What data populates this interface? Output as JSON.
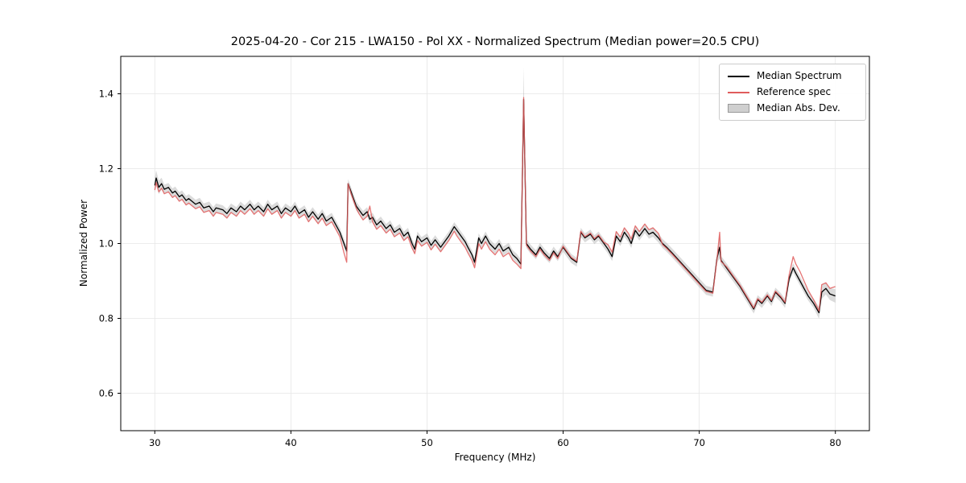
{
  "colors": {
    "median_line": "#000000",
    "reference_line": "#e05c5c",
    "mad_band": "#b0b0b0",
    "grid": "#e6e6e6",
    "axes_border": "#000000",
    "legend_border": "#cccccc"
  },
  "chart_data": {
    "type": "line",
    "title": "2025-04-20 - Cor 215 - LWA150 - Pol XX - Normalized Spectrum (Median power=20.5 CPU)",
    "xlabel": "Frequency (MHz)",
    "ylabel": "Normalized Power",
    "xlim": [
      27.5,
      82.5
    ],
    "ylim": [
      0.5,
      1.5
    ],
    "xticks": [
      30,
      40,
      50,
      60,
      70,
      80
    ],
    "yticks": [
      0.6,
      0.8,
      1.0,
      1.2,
      1.4
    ],
    "grid": true,
    "legend": {
      "position": "top-right",
      "entries": [
        {
          "label": "Median Spectrum",
          "color": "#000000",
          "type": "line"
        },
        {
          "label": "Reference spec",
          "color": "#e05c5c",
          "type": "line"
        },
        {
          "label": "Median Abs. Dev.",
          "color": "#cfcfcf",
          "type": "band"
        }
      ]
    },
    "x": [
      30.0,
      30.1,
      30.3,
      30.5,
      30.7,
      31.0,
      31.3,
      31.5,
      31.8,
      32.0,
      32.3,
      32.5,
      33.0,
      33.3,
      33.6,
      34.0,
      34.3,
      34.5,
      35.0,
      35.3,
      35.6,
      36.0,
      36.3,
      36.6,
      37.0,
      37.3,
      37.6,
      38.0,
      38.3,
      38.6,
      39.0,
      39.3,
      39.6,
      40.0,
      40.3,
      40.6,
      41.0,
      41.3,
      41.6,
      42.0,
      42.3,
      42.6,
      43.0,
      43.3,
      43.6,
      43.9,
      44.1,
      44.2,
      44.4,
      44.6,
      44.8,
      45.0,
      45.3,
      45.6,
      45.8,
      46.0,
      46.3,
      46.6,
      47.0,
      47.3,
      47.6,
      48.0,
      48.3,
      48.6,
      48.9,
      49.1,
      49.3,
      49.6,
      50.0,
      50.3,
      50.6,
      51.0,
      51.3,
      51.6,
      52.0,
      52.2,
      52.5,
      52.8,
      53.0,
      53.3,
      53.5,
      53.8,
      54.0,
      54.3,
      54.6,
      55.0,
      55.3,
      55.6,
      56.0,
      56.3,
      56.6,
      56.9,
      57.1,
      57.3,
      57.6,
      58.0,
      58.3,
      58.6,
      59.0,
      59.3,
      59.6,
      60.0,
      60.3,
      60.6,
      61.0,
      61.3,
      61.6,
      62.0,
      62.3,
      62.6,
      63.0,
      63.3,
      63.6,
      63.9,
      64.2,
      64.5,
      64.8,
      65.0,
      65.3,
      65.6,
      66.0,
      66.3,
      66.6,
      67.0,
      67.3,
      67.6,
      68.0,
      68.5,
      69.0,
      69.5,
      70.0,
      70.5,
      71.0,
      71.3,
      71.5,
      71.6,
      72.0,
      72.5,
      73.0,
      73.5,
      74.0,
      74.3,
      74.6,
      75.0,
      75.3,
      75.6,
      76.0,
      76.3,
      76.6,
      76.9,
      77.1,
      77.4,
      77.7,
      78.0,
      78.4,
      78.8,
      79.0,
      79.3,
      79.6,
      80.0
    ],
    "series": [
      {
        "name": "Median Spectrum",
        "color": "#000000",
        "values": [
          1.155,
          1.175,
          1.15,
          1.16,
          1.145,
          1.15,
          1.135,
          1.14,
          1.125,
          1.13,
          1.115,
          1.12,
          1.105,
          1.11,
          1.095,
          1.1,
          1.085,
          1.095,
          1.09,
          1.08,
          1.095,
          1.085,
          1.1,
          1.09,
          1.105,
          1.09,
          1.1,
          1.085,
          1.105,
          1.09,
          1.1,
          1.08,
          1.095,
          1.085,
          1.1,
          1.08,
          1.09,
          1.07,
          1.085,
          1.065,
          1.08,
          1.06,
          1.07,
          1.05,
          1.03,
          1.0,
          0.98,
          1.16,
          1.14,
          1.12,
          1.1,
          1.09,
          1.075,
          1.085,
          1.065,
          1.07,
          1.05,
          1.06,
          1.04,
          1.05,
          1.03,
          1.04,
          1.02,
          1.03,
          1.0,
          0.985,
          1.02,
          1.005,
          1.015,
          0.995,
          1.01,
          0.99,
          1.005,
          1.02,
          1.045,
          1.035,
          1.02,
          1.005,
          0.99,
          0.97,
          0.95,
          1.015,
          1.0,
          1.02,
          1.0,
          0.985,
          1.0,
          0.98,
          0.99,
          0.97,
          0.96,
          0.945,
          1.385,
          1.0,
          0.985,
          0.97,
          0.99,
          0.975,
          0.96,
          0.98,
          0.965,
          0.99,
          0.975,
          0.96,
          0.95,
          1.03,
          1.015,
          1.025,
          1.01,
          1.02,
          1.0,
          0.985,
          0.965,
          1.02,
          1.005,
          1.03,
          1.015,
          1.0,
          1.035,
          1.02,
          1.04,
          1.025,
          1.03,
          1.015,
          1.0,
          0.99,
          0.975,
          0.955,
          0.935,
          0.915,
          0.895,
          0.875,
          0.87,
          0.96,
          0.99,
          0.955,
          0.935,
          0.91,
          0.885,
          0.855,
          0.825,
          0.85,
          0.84,
          0.86,
          0.845,
          0.87,
          0.855,
          0.84,
          0.905,
          0.935,
          0.92,
          0.9,
          0.88,
          0.86,
          0.84,
          0.815,
          0.87,
          0.88,
          0.865,
          0.86
        ]
      },
      {
        "name": "Reference spec",
        "color": "#e05c5c",
        "values": [
          1.143,
          1.163,
          1.138,
          1.148,
          1.133,
          1.138,
          1.123,
          1.128,
          1.113,
          1.118,
          1.103,
          1.108,
          1.093,
          1.098,
          1.083,
          1.088,
          1.073,
          1.083,
          1.078,
          1.068,
          1.083,
          1.073,
          1.088,
          1.078,
          1.093,
          1.078,
          1.088,
          1.073,
          1.093,
          1.078,
          1.088,
          1.068,
          1.083,
          1.073,
          1.088,
          1.068,
          1.078,
          1.058,
          1.073,
          1.053,
          1.068,
          1.048,
          1.058,
          1.038,
          1.018,
          0.975,
          0.95,
          1.16,
          1.135,
          1.115,
          1.095,
          1.08,
          1.063,
          1.073,
          1.1,
          1.058,
          1.038,
          1.048,
          1.028,
          1.038,
          1.018,
          1.028,
          1.008,
          1.018,
          0.988,
          0.973,
          1.008,
          0.993,
          1.003,
          0.983,
          0.998,
          0.978,
          0.993,
          1.008,
          1.033,
          1.02,
          1.005,
          0.99,
          0.975,
          0.955,
          0.935,
          1.0,
          0.985,
          1.005,
          0.985,
          0.97,
          0.985,
          0.965,
          0.975,
          0.955,
          0.945,
          0.933,
          1.39,
          0.995,
          0.98,
          0.965,
          0.985,
          0.97,
          0.955,
          0.975,
          0.96,
          0.993,
          0.978,
          0.963,
          0.953,
          1.033,
          1.018,
          1.028,
          1.013,
          1.023,
          1.003,
          0.997,
          0.977,
          1.032,
          1.017,
          1.042,
          1.027,
          1.012,
          1.047,
          1.032,
          1.052,
          1.037,
          1.042,
          1.027,
          0.997,
          0.987,
          0.972,
          0.952,
          0.932,
          0.912,
          0.892,
          0.872,
          0.867,
          0.957,
          1.03,
          0.952,
          0.938,
          0.913,
          0.888,
          0.858,
          0.828,
          0.853,
          0.843,
          0.863,
          0.848,
          0.873,
          0.858,
          0.843,
          0.915,
          0.965,
          0.945,
          0.925,
          0.9,
          0.875,
          0.85,
          0.82,
          0.89,
          0.895,
          0.88,
          0.885
        ]
      }
    ],
    "mad_default": 0.012,
    "mad_overrides": [
      [
        30.0,
        0.02
      ],
      [
        30.1,
        0.02
      ],
      [
        30.3,
        0.018
      ],
      [
        30.5,
        0.016
      ],
      [
        57.1,
        0.085
      ],
      [
        71.5,
        0.03
      ],
      [
        78.8,
        0.016
      ],
      [
        79.0,
        0.018
      ],
      [
        79.3,
        0.016
      ],
      [
        79.6,
        0.016
      ],
      [
        80.0,
        0.018
      ]
    ]
  }
}
